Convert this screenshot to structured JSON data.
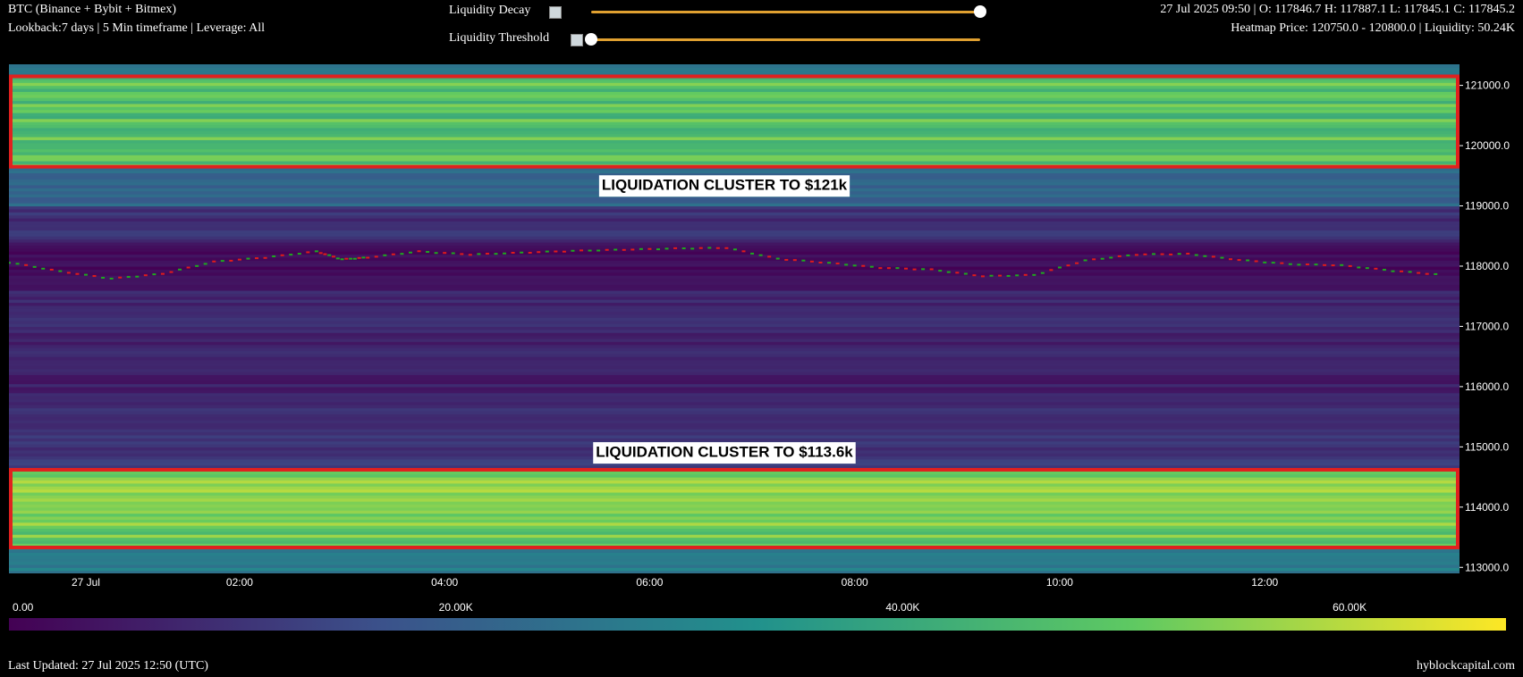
{
  "header": {
    "title": "BTC (Binance + Bybit + Bitmex)",
    "subtitle": "Lookback:7 days | 5 Min timeframe | Leverage: All",
    "ohlc": "27 Jul 2025 09:50 | O: 117846.7 H: 117887.1 L: 117845.1 C: 117845.2",
    "heatmap_info": "Heatmap Price: 120750.0 - 120800.0 | Liquidity: 50.24K"
  },
  "controls": {
    "decay_label": "Liquidity Decay",
    "decay_value": 1.0,
    "threshold_label": "Liquidity Threshold",
    "threshold_value": 0.0,
    "accent": "#e0a030"
  },
  "footer": {
    "last_updated": "Last Updated: 27 Jul 2025 12:50 (UTC)",
    "brand": "hyblockcapital.com"
  },
  "chart_data": {
    "type": "heatmap",
    "title": "",
    "xlabel": "",
    "ylabel": "",
    "ylim": [
      112900,
      121350
    ],
    "xlim_hours": [
      -0.25,
      13.9
    ],
    "y_ticks": [
      113000,
      114000,
      115000,
      116000,
      117000,
      118000,
      119000,
      120000,
      121000
    ],
    "y_tick_labels": [
      "113000.0",
      "114000.0",
      "115000.0",
      "116000.0",
      "117000.0",
      "118000.0",
      "119000.0",
      "120000.0",
      "121000.0"
    ],
    "x_ticks": [
      0.5,
      2,
      4,
      6,
      8,
      10,
      12
    ],
    "x_tick_labels": [
      "27 Jul",
      "02:00",
      "04:00",
      "06:00",
      "08:00",
      "10:00",
      "12:00"
    ],
    "colorbar": {
      "ticks": [
        0,
        20000,
        40000,
        60000
      ],
      "tick_labels": [
        "0.00",
        "20.00K",
        "40.00K",
        "60.00K"
      ],
      "max": 67000,
      "colors": [
        "#440154",
        "#3b528b",
        "#21918c",
        "#5ec962",
        "#fde725"
      ]
    },
    "annotations": [
      {
        "text": "LIQUIDATION CLUSTER TO $121k",
        "price": 119330
      },
      {
        "text": "LIQUIDATION CLUSTER TO $113.6k ",
        "price": 114900
      }
    ],
    "highlight_boxes": [
      {
        "price_from": 119650,
        "price_to": 121150
      },
      {
        "price_from": 113330,
        "price_to": 114620
      }
    ],
    "liquidity_zones": [
      {
        "price_from": 121150,
        "price_to": 121350,
        "level": 0.38
      },
      {
        "price_from": 119650,
        "price_to": 121150,
        "level": 0.72
      },
      {
        "price_from": 119000,
        "price_to": 119650,
        "level": 0.33
      },
      {
        "price_from": 118400,
        "price_to": 119000,
        "level": 0.14
      },
      {
        "price_from": 117600,
        "price_to": 118400,
        "level": 0.02
      },
      {
        "price_from": 116800,
        "price_to": 117600,
        "level": 0.12
      },
      {
        "price_from": 115700,
        "price_to": 116800,
        "level": 0.1
      },
      {
        "price_from": 114620,
        "price_to": 115700,
        "level": 0.16
      },
      {
        "price_from": 113330,
        "price_to": 114620,
        "level": 0.78
      },
      {
        "price_from": 112900,
        "price_to": 113330,
        "level": 0.42
      }
    ],
    "price_series": {
      "name": "",
      "up_color": "#1fa81f",
      "down_color": "#e01b1b",
      "x_hours": [
        -0.25,
        0.25,
        0.75,
        1.25,
        1.75,
        2.25,
        2.75,
        3.0,
        3.25,
        3.75,
        4.25,
        4.75,
        5.25,
        5.75,
        6.25,
        6.75,
        7.25,
        7.75,
        8.25,
        8.75,
        9.25,
        9.75,
        10.25,
        10.75,
        11.25,
        11.75,
        12.25,
        12.75,
        13.25,
        13.75
      ],
      "close": [
        118070,
        117920,
        117800,
        117880,
        118080,
        118150,
        118250,
        118120,
        118150,
        118250,
        118200,
        118230,
        118260,
        118280,
        118300,
        118310,
        118130,
        118060,
        117980,
        117950,
        117840,
        117860,
        118100,
        118200,
        118210,
        118110,
        118040,
        118020,
        117930,
        117860
      ]
    }
  }
}
